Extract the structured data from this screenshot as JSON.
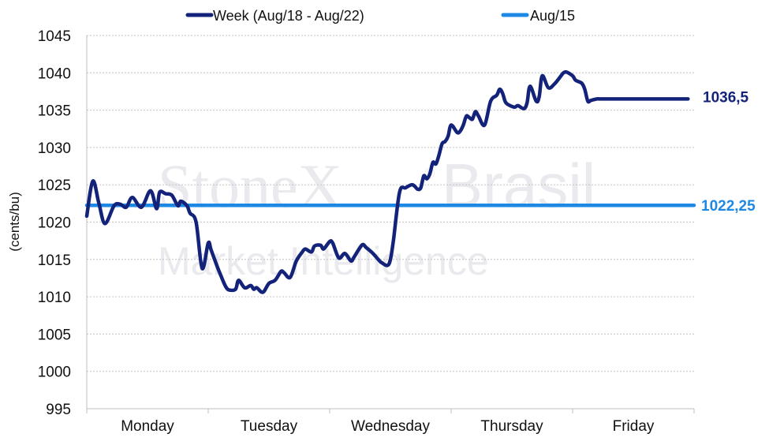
{
  "watermark": {
    "brand": "StoneX",
    "mark": "®",
    "region": "Brasil",
    "tagline": "Market Intelligence"
  },
  "chart_data": {
    "type": "line",
    "ylabel": "(cents/bu)",
    "xlabel": "",
    "ylim": [
      995,
      1045
    ],
    "yticks": [
      995,
      1000,
      1005,
      1010,
      1015,
      1020,
      1025,
      1030,
      1035,
      1040,
      1045
    ],
    "categories": [
      "Monday",
      "Tuesday",
      "Wednesday",
      "Thursday",
      "Friday"
    ],
    "grid": "horizontal dotted",
    "legend_position": "top",
    "series": [
      {
        "name": "Week (Aug/18 - Aug/22)",
        "color": "#14237a",
        "end_label": "1036,5",
        "x": [
          0.0,
          0.1,
          0.2,
          0.3,
          0.45,
          0.55,
          0.65,
          0.75,
          0.9,
          1.05,
          1.15,
          1.2,
          1.3,
          1.4,
          1.5,
          1.55,
          1.65,
          1.7,
          1.8,
          1.9,
          2.0,
          2.05,
          2.15,
          2.2,
          2.25,
          2.3,
          2.35,
          2.45,
          2.5,
          2.6,
          2.7,
          2.75,
          2.8,
          2.9,
          3.0,
          3.1,
          3.2,
          3.25,
          3.35,
          3.45,
          3.55,
          3.6,
          3.7,
          3.75,
          3.85,
          3.9,
          4.0,
          4.05,
          4.15,
          4.25,
          4.35,
          4.4,
          4.5,
          4.55,
          4.6,
          4.7,
          4.8,
          4.85,
          4.95,
          5.0,
          5.05,
          5.15,
          5.25,
          5.35,
          5.4,
          5.45,
          5.5,
          5.55,
          5.6,
          5.65,
          5.7,
          5.75,
          5.8,
          5.85,
          5.9,
          5.95,
          6.0,
          6.1,
          6.15,
          6.2,
          6.25,
          6.3,
          6.35,
          6.4,
          6.45,
          6.55,
          6.65,
          6.75,
          6.8,
          6.85,
          6.9,
          7.0,
          7.05,
          7.1,
          7.2,
          7.25,
          7.3,
          7.4,
          7.45,
          7.5,
          7.6,
          7.7,
          7.8,
          7.85,
          7.9,
          8.0,
          8.05,
          8.15,
          8.2,
          8.25,
          8.3,
          8.4,
          8.45,
          8.5,
          8.6,
          8.75,
          8.9,
          9.0,
          9.05,
          9.15,
          9.25,
          9.35,
          9.45,
          9.6,
          9.65,
          9.7,
          9.8,
          9.85,
          9.9
        ],
        "y": [
          1020.8,
          1025.5,
          1022.5,
          1019.8,
          1022.2,
          1022.4,
          1022.0,
          1023.3,
          1022.0,
          1024.2,
          1021.8,
          1024.0,
          1023.8,
          1023.6,
          1022.2,
          1022.8,
          1022.2,
          1021.2,
          1020.0,
          1013.8,
          1017.2,
          1016.2,
          1014.0,
          1013.0,
          1012.0,
          1011.2,
          1010.9,
          1011.0,
          1012.2,
          1011.2,
          1011.5,
          1011.0,
          1011.2,
          1010.6,
          1011.8,
          1012.2,
          1013.4,
          1013.2,
          1012.6,
          1014.8,
          1016.0,
          1016.4,
          1016.0,
          1016.8,
          1016.9,
          1016.4,
          1017.4,
          1017.2,
          1015.2,
          1015.8,
          1014.8,
          1015.3,
          1016.6,
          1017.0,
          1016.6,
          1015.9,
          1015.0,
          1014.6,
          1014.2,
          1015.0,
          1017.6,
          1024.0,
          1024.6,
          1025.0,
          1024.8,
          1024.4,
          1024.6,
          1026.2,
          1025.8,
          1026.5,
          1028.0,
          1027.8,
          1029.0,
          1030.5,
          1030.8,
          1031.5,
          1033.0,
          1032.0,
          1032.2,
          1033.0,
          1034.2,
          1034.0,
          1033.8,
          1034.8,
          1034.2,
          1033.0,
          1036.2,
          1037.0,
          1037.8,
          1037.2,
          1036.0,
          1035.5,
          1035.4,
          1035.6,
          1035.2,
          1036.0,
          1038.2,
          1036.2,
          1036.8,
          1039.6,
          1038.0,
          1038.5,
          1039.5,
          1040.0,
          1040.1,
          1039.6,
          1039.0,
          1038.6,
          1037.8,
          1036.2,
          1036.3,
          1036.5,
          1036.5,
          1036.5,
          1036.5,
          1036.5,
          1036.5,
          1036.5,
          1036.5,
          1036.5,
          1036.5,
          1036.5,
          1036.5,
          1036.5,
          1036.5,
          1036.5,
          1036.5,
          1036.5,
          1036.5
        ]
      },
      {
        "name": "Aug/15",
        "color": "#1e88e5",
        "end_label": "1022,25",
        "value": 1022.25
      }
    ]
  }
}
